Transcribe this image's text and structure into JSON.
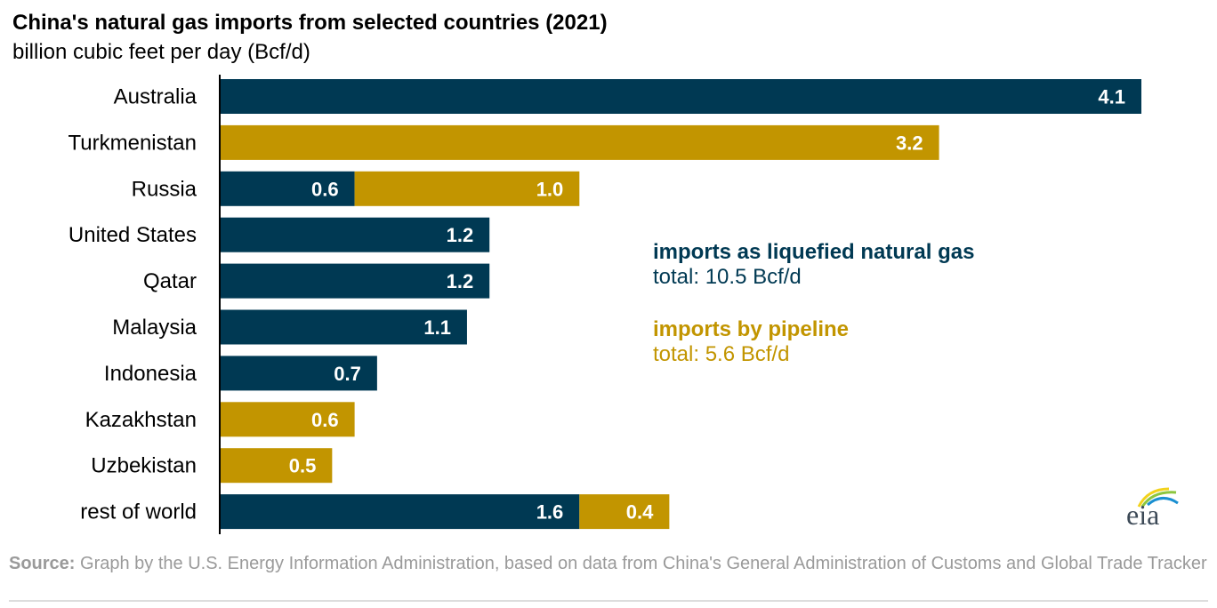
{
  "header": {
    "title": "China's natural gas imports from selected countries (2021)",
    "subtitle": "billion cubic feet per day (Bcf/d)"
  },
  "legend": {
    "lng": {
      "name": "imports as liquefied natural gas",
      "total": "total: 10.5 Bcf/d",
      "color": "#003953"
    },
    "pipeline": {
      "name": "imports by pipeline",
      "total": "total: 5.6 Bcf/d",
      "color": "#c29500"
    }
  },
  "source": {
    "label": "Source:",
    "text": "Graph by the U.S. Energy Information Administration, based on data from China's General Administration of Customs and Global Trade Tracker"
  },
  "logo": {
    "text": "eia"
  },
  "chart_data": {
    "type": "bar",
    "orientation": "horizontal",
    "stacked": true,
    "title": "China's natural gas imports from selected countries (2021)",
    "ylabel": "billion cubic feet per day (Bcf/d)",
    "categories": [
      "Australia",
      "Turkmenistan",
      "Russia",
      "United  States",
      "Qatar",
      "Malaysia",
      "Indonesia",
      "Kazakhstan",
      "Uzbekistan",
      "rest of world"
    ],
    "series": [
      {
        "name": "imports as liquefied natural gas",
        "color": "#003953",
        "values": [
          4.1,
          0,
          0.6,
          1.2,
          1.2,
          1.1,
          0.7,
          0,
          0,
          1.6
        ]
      },
      {
        "name": "imports by pipeline",
        "color": "#c29500",
        "values": [
          0,
          3.2,
          1.0,
          0,
          0,
          0,
          0,
          0.6,
          0.5,
          0.4
        ]
      }
    ],
    "xlim": [
      0,
      4.1
    ],
    "grid": false,
    "legend": "right"
  }
}
